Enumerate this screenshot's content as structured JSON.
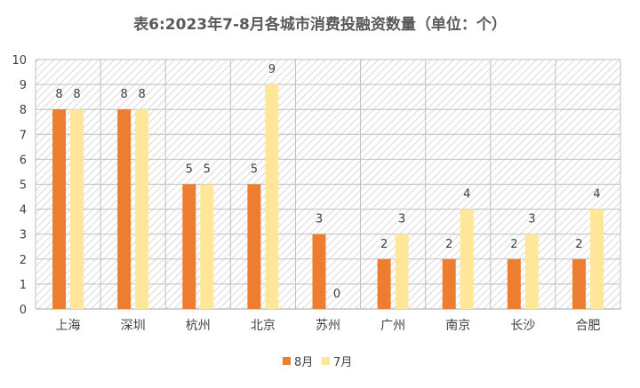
{
  "chart_data": {
    "type": "bar",
    "title": "表6:2023年7-8月各城市消费投融资数量（单位：个）",
    "categories": [
      "上海",
      "深圳",
      "杭州",
      "北京",
      "苏州",
      "广州",
      "南京",
      "长沙",
      "合肥"
    ],
    "series": [
      {
        "name": "8月",
        "color": "#ED7D31",
        "values": [
          8,
          8,
          5,
          5,
          3,
          2,
          2,
          2,
          2
        ]
      },
      {
        "name": "7月",
        "color": "#FFE699",
        "values": [
          8,
          8,
          5,
          9,
          0,
          3,
          4,
          3,
          4
        ]
      }
    ],
    "ylim": [
      0,
      10
    ],
    "yticks": [
      0,
      1,
      2,
      3,
      4,
      5,
      6,
      7,
      8,
      9,
      10
    ],
    "data_labels": true,
    "grid": true,
    "plot_background": "hatched",
    "legend_position": "bottom"
  }
}
